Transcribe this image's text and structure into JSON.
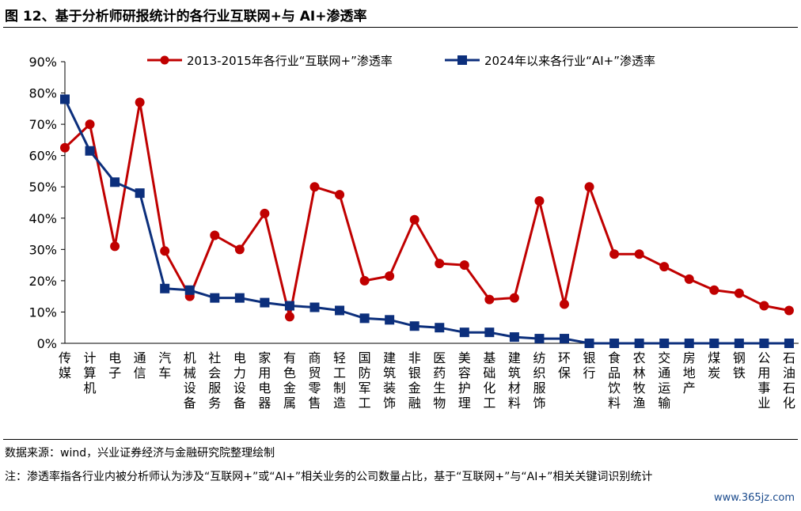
{
  "figure": {
    "title": "图 12、基于分析师研报统计的各行业互联网+与 AI+渗透率",
    "source": "数据来源：wind，兴业证券经济与金融研究院整理绘制",
    "note": "注：渗透率指各行业内被分析师认为涉及“互联网+”或“AI+”相关业务的公司数量占比，基于“互联网+”与“AI+”相关关键词识别统计",
    "watermark": "www.365jz.com"
  },
  "chart_data": {
    "type": "line",
    "title": "",
    "xlabel": "",
    "ylabel": "",
    "ylim": [
      0,
      90
    ],
    "y_tick_labels": [
      "0%",
      "10%",
      "20%",
      "30%",
      "40%",
      "50%",
      "60%",
      "70%",
      "80%",
      "90%"
    ],
    "grid": false,
    "legend_position": "top",
    "categories": [
      "传媒",
      "计算机",
      "电子",
      "通信",
      "汽车",
      "机械设备",
      "社会服务",
      "电力设备",
      "家用电器",
      "有色金属",
      "商贸零售",
      "轻工制造",
      "国防军工",
      "建筑装饰",
      "非银金融",
      "医药生物",
      "美容护理",
      "基础化工",
      "建筑材料",
      "纺织服饰",
      "环保",
      "银行",
      "食品饮料",
      "农林牧渔",
      "交通运输",
      "房地产",
      "煤炭",
      "钢铁",
      "公用事业",
      "石油石化"
    ],
    "series": [
      {
        "name": "2013-2015年各行业“互联网+”渗透率",
        "color": "#c00000",
        "values": [
          62.5,
          70,
          31,
          77,
          29.5,
          15,
          34.5,
          30,
          41.5,
          8.5,
          50,
          47.5,
          20,
          21.5,
          39.5,
          25.5,
          25,
          14,
          14.5,
          45.5,
          12.5,
          50,
          28.5,
          28.5,
          24.5,
          20.5,
          17,
          16,
          12,
          10.5
        ]
      },
      {
        "name": "2024年以来各行业“AI+”渗透率",
        "color": "#0c2f7c",
        "values": [
          78,
          61.5,
          51.5,
          48,
          17.5,
          17,
          14.5,
          14.5,
          13,
          12,
          11.5,
          10.5,
          8,
          7.5,
          5.5,
          5,
          3.5,
          3.5,
          2,
          1.5,
          1.5,
          0,
          0,
          0,
          0,
          0,
          0,
          0,
          0,
          0
        ]
      }
    ]
  }
}
